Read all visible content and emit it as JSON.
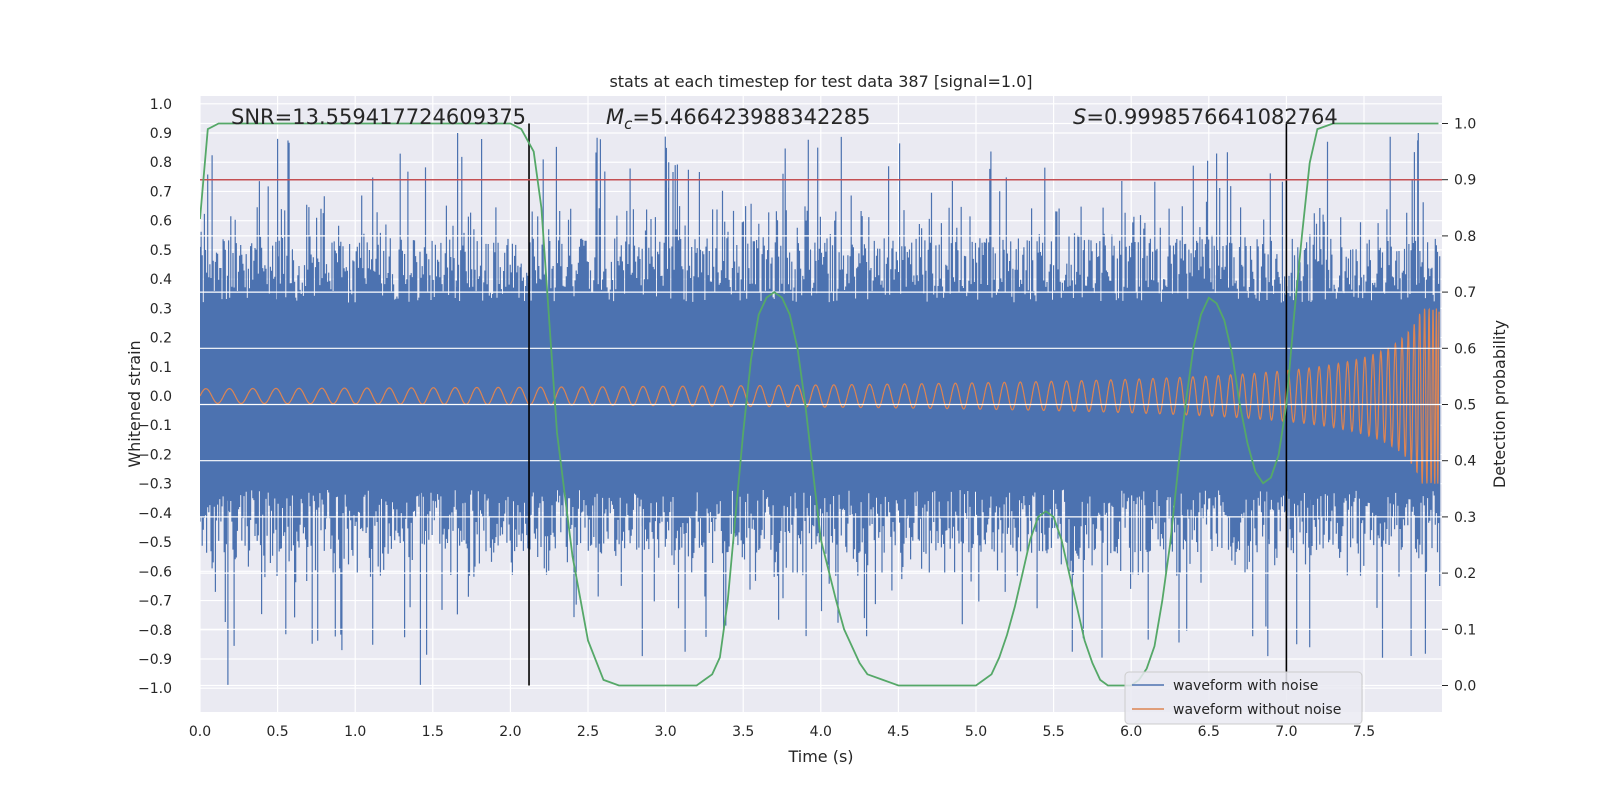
{
  "chart_data": {
    "type": "line",
    "title": "stats at each timestep for test data 387 [signal=1.0]",
    "xlabel": "Time (s)",
    "ylabel": "Whitened strain",
    "y2label": "Detection probability",
    "xlim": [
      0.0,
      8.0
    ],
    "ylim": [
      -1.09,
      1.0
    ],
    "y2lim": [
      -0.047,
      1.04
    ],
    "xticks": [
      "0.0",
      "0.5",
      "1.0",
      "1.5",
      "2.0",
      "2.5",
      "3.0",
      "3.5",
      "4.0",
      "4.5",
      "5.0",
      "5.5",
      "6.0",
      "6.5",
      "7.0",
      "7.5"
    ],
    "yticks": [
      "1.0",
      "0.9",
      "0.8",
      "0.7",
      "0.6",
      "0.5",
      "0.4",
      "0.3",
      "0.2",
      "0.1",
      "0.0",
      "−0.1",
      "−0.2",
      "−0.3",
      "−0.4",
      "−0.5",
      "−0.6",
      "−0.7",
      "−0.8",
      "−0.9",
      "−1.0"
    ],
    "y2ticks": [
      "1.0",
      "0.9",
      "0.8",
      "0.7",
      "0.6",
      "0.5",
      "0.4",
      "0.3",
      "0.2",
      "0.1",
      "0.0"
    ],
    "annotations": {
      "snr": "SNR=13.559417724609375",
      "mc_symbol": "M",
      "mc_sub": "c",
      "mc_value": "=5.466423988342285",
      "s_symbol": "S",
      "s_value": "=0.9998576641082764"
    },
    "threshold": {
      "value": 0.9,
      "axis": "y2"
    },
    "vertical_lines": [
      2.12,
      7.0
    ],
    "series": [
      {
        "name": "waveform with noise",
        "color": "#4c72b0",
        "kind": "noise",
        "amplitude_envelope": 0.55,
        "peak": 1.0
      },
      {
        "name": "waveform without noise",
        "color": "#dd8452",
        "kind": "chirp",
        "start_amplitude": 0.025,
        "end_amplitude": 0.3,
        "merger_time": 8.0
      },
      {
        "name": "Detection probability",
        "color": "#55a868",
        "axis": "y2",
        "x": [
          0.0,
          0.05,
          0.12,
          0.3,
          0.6,
          1.0,
          1.4,
          1.8,
          2.0,
          2.07,
          2.15,
          2.2,
          2.25,
          2.3,
          2.4,
          2.5,
          2.6,
          2.7,
          2.8,
          2.9,
          3.0,
          3.1,
          3.15,
          3.2,
          3.25,
          3.3,
          3.35,
          3.4,
          3.45,
          3.5,
          3.55,
          3.6,
          3.65,
          3.7,
          3.75,
          3.8,
          3.85,
          3.9,
          3.95,
          4.0,
          4.1,
          4.15,
          4.25,
          4.3,
          4.4,
          4.5,
          4.6,
          4.7,
          4.8,
          4.9,
          5.0,
          5.05,
          5.1,
          5.15,
          5.2,
          5.25,
          5.3,
          5.35,
          5.4,
          5.45,
          5.5,
          5.55,
          5.6,
          5.65,
          5.7,
          5.75,
          5.8,
          5.85,
          5.9,
          5.95,
          6.0,
          6.05,
          6.1,
          6.15,
          6.2,
          6.25,
          6.3,
          6.35,
          6.4,
          6.45,
          6.5,
          6.55,
          6.6,
          6.65,
          6.7,
          6.75,
          6.8,
          6.85,
          6.9,
          6.95,
          7.0,
          7.05,
          7.1,
          7.15,
          7.2,
          7.3,
          7.5,
          7.7,
          7.9,
          7.98
        ],
        "y": [
          0.83,
          0.99,
          1.0,
          1.0,
          1.0,
          1.0,
          1.0,
          1.0,
          1.0,
          0.99,
          0.95,
          0.85,
          0.65,
          0.45,
          0.23,
          0.08,
          0.01,
          0.0,
          0.0,
          0.0,
          0.0,
          0.0,
          0.0,
          0.0,
          0.01,
          0.02,
          0.05,
          0.15,
          0.3,
          0.45,
          0.58,
          0.66,
          0.69,
          0.7,
          0.69,
          0.66,
          0.6,
          0.5,
          0.38,
          0.26,
          0.15,
          0.1,
          0.04,
          0.02,
          0.01,
          0.0,
          0.0,
          0.0,
          0.0,
          0.0,
          0.0,
          0.01,
          0.02,
          0.05,
          0.09,
          0.14,
          0.2,
          0.26,
          0.3,
          0.31,
          0.3,
          0.26,
          0.2,
          0.14,
          0.08,
          0.04,
          0.01,
          0.0,
          0.0,
          0.0,
          0.0,
          0.01,
          0.03,
          0.07,
          0.15,
          0.25,
          0.38,
          0.5,
          0.6,
          0.66,
          0.69,
          0.68,
          0.65,
          0.59,
          0.5,
          0.43,
          0.38,
          0.36,
          0.37,
          0.41,
          0.5,
          0.66,
          0.8,
          0.93,
          0.99,
          1.0,
          1.0,
          1.0,
          1.0,
          1.0
        ]
      }
    ]
  }
}
